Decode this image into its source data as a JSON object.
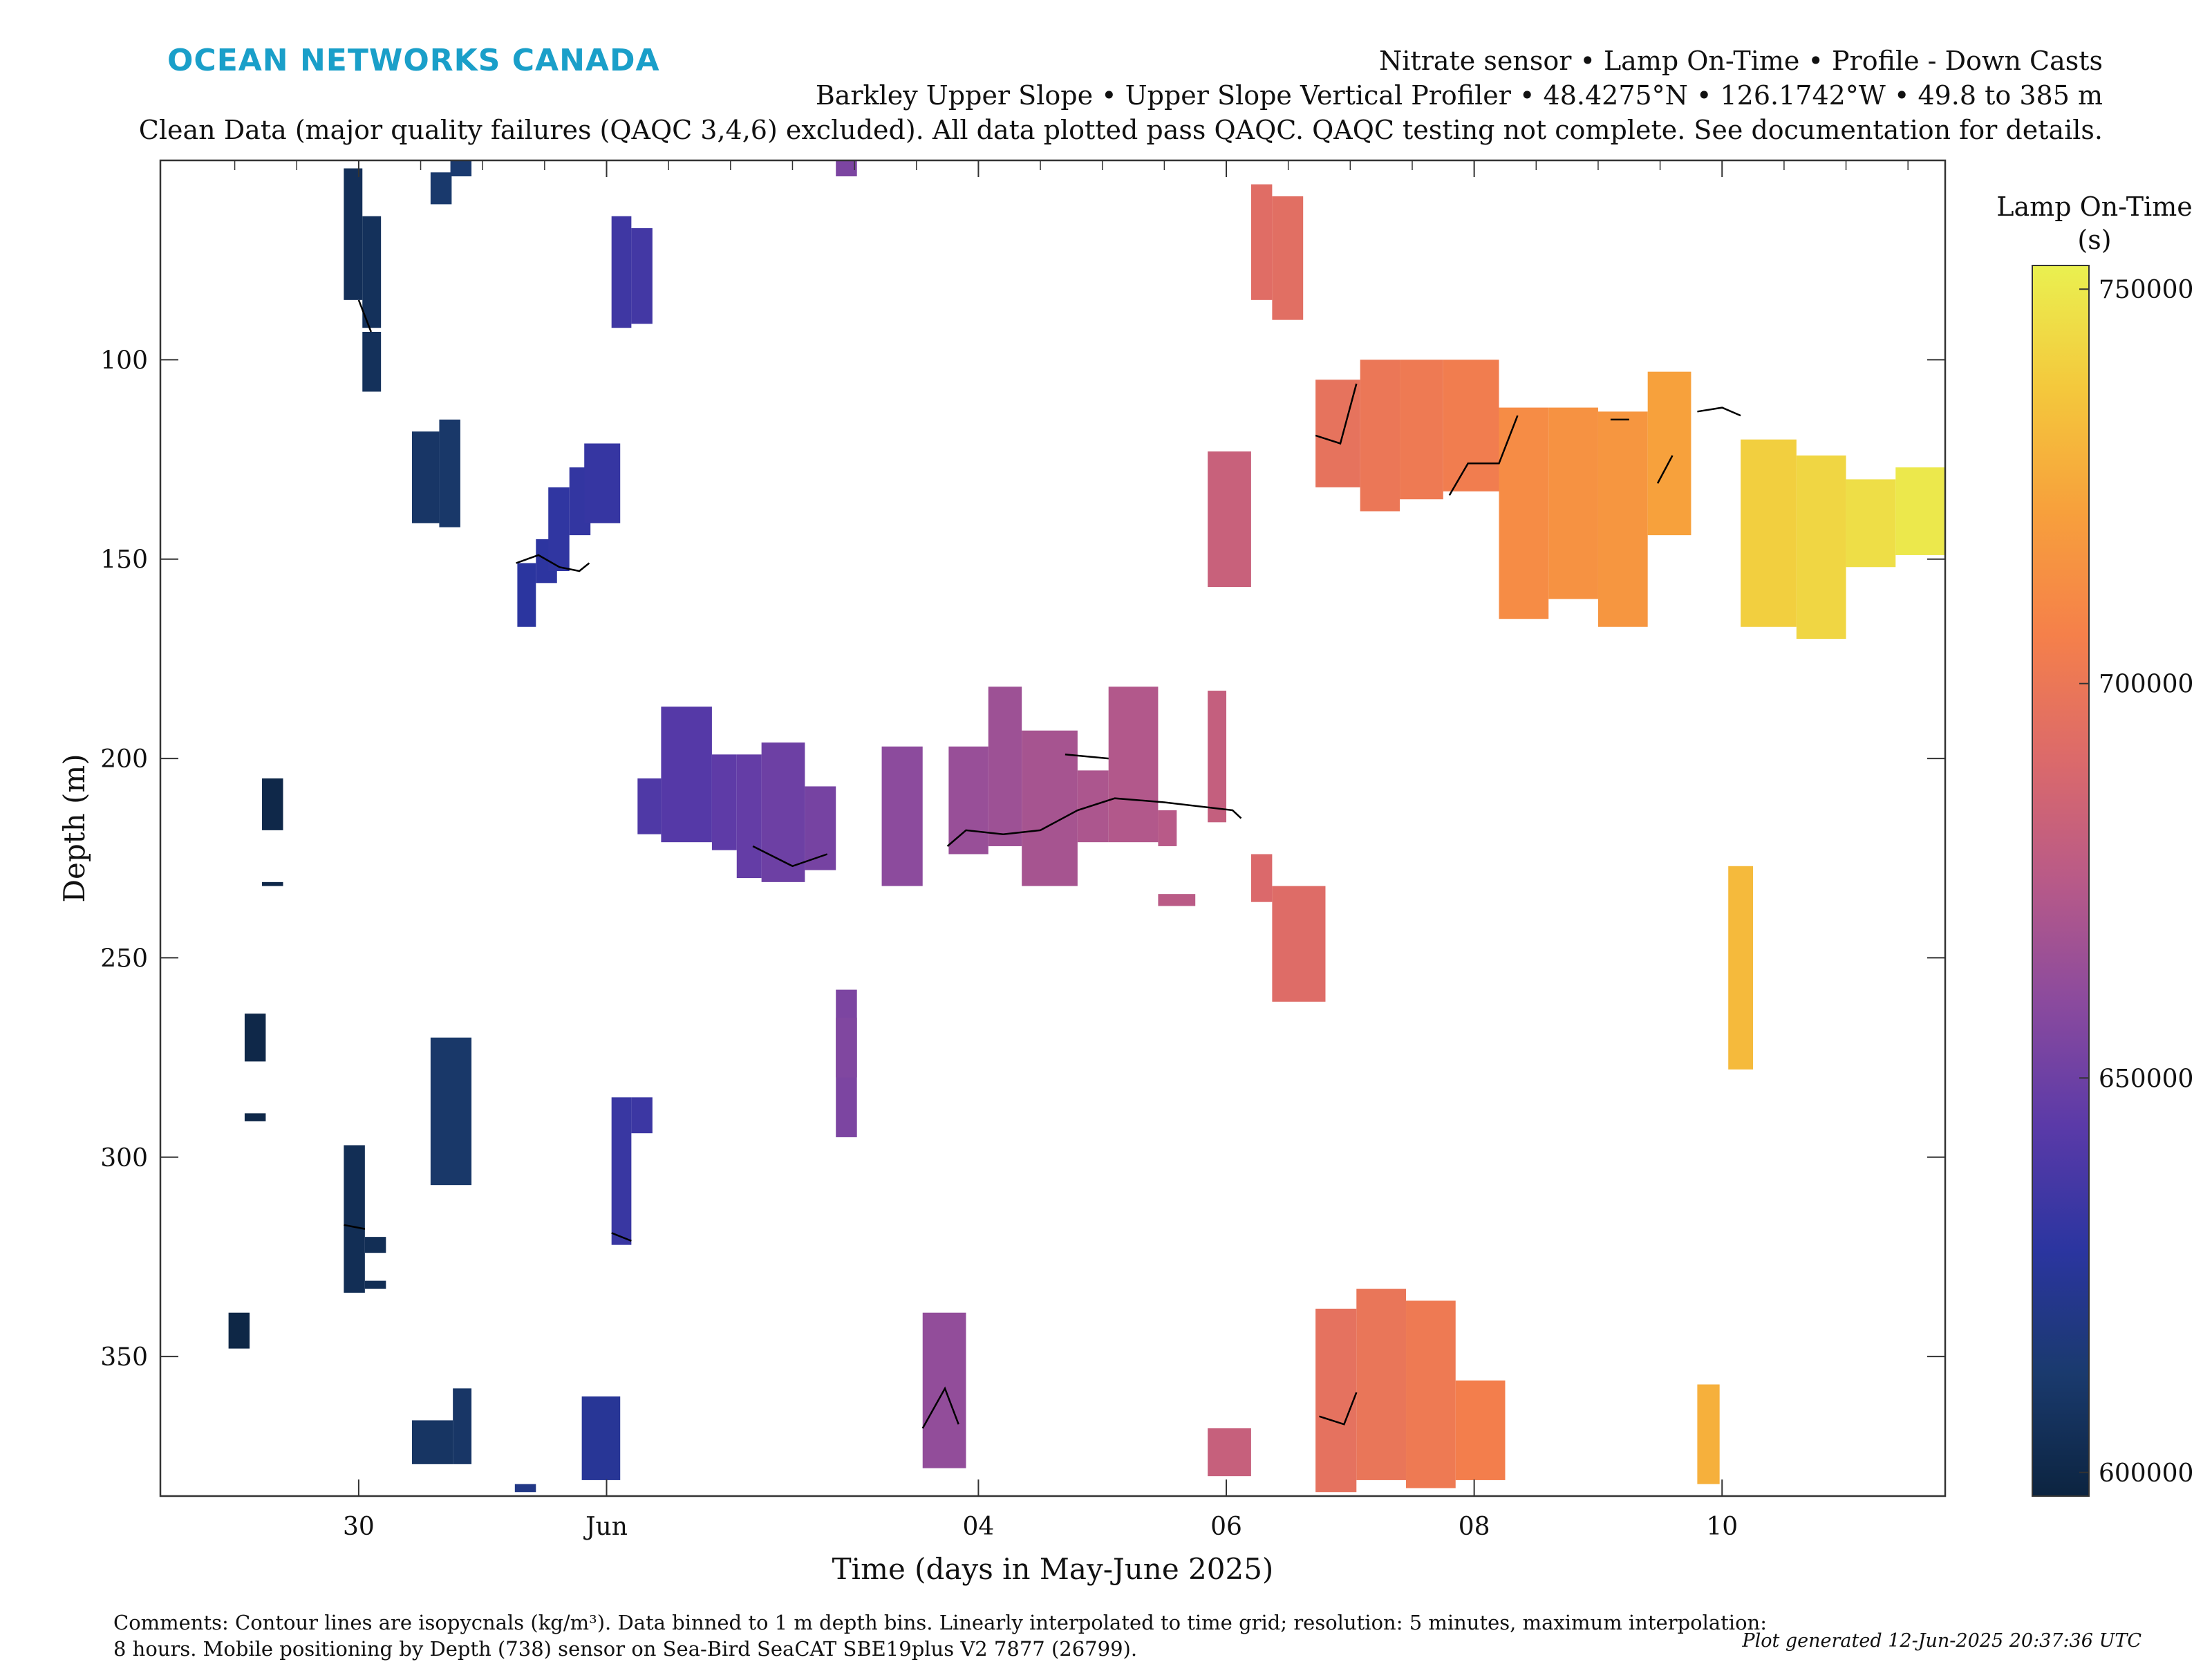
{
  "header": {
    "logo_text": "OCEAN NETWORKS CANADA",
    "title_line1": "Nitrate sensor • Lamp On-Time • Profile - Down Casts",
    "title_line2": "Barkley Upper Slope • Upper Slope Vertical Profiler • 48.4275°N • 126.1742°W • 49.8 to 385 m",
    "title_line3": "Clean Data (major quality failures (QAQC 3,4,6) excluded). All data plotted pass QAQC. QAQC testing not complete. See documentation for details."
  },
  "footer": {
    "comments_line1": "Comments: Contour lines are isopycnals (kg/m³). Data binned to 1 m depth bins. Linearly interpolated to time grid; resolution: 5 minutes, maximum interpolation:",
    "comments_line2": "8 hours. Mobile positioning by Depth (738) sensor on Sea-Bird SeaCAT SBE19plus V2 7877 (26799).",
    "generated": "Plot generated 12-Jun-2025 20:37:36 UTC"
  },
  "colors": {
    "axis": "#333333",
    "contour": "#000000",
    "colormap": [
      "#0c2440",
      "#1a3a6e",
      "#2b35a0",
      "#5a3aa8",
      "#8a4a9e",
      "#b85a88",
      "#dc6a6a",
      "#f5804a",
      "#f7a03c",
      "#f4c83c",
      "#eaf050"
    ]
  },
  "chart_data": {
    "type": "heatmap",
    "xlabel": "Time (days in May-June 2025)",
    "ylabel": "Depth (m)",
    "x_unit": "days relative to 1 Jun 2025 00:00",
    "xlim": [
      -3.6,
      10.8
    ],
    "ylim": [
      385,
      50
    ],
    "y_reversed": true,
    "x_ticks": [
      {
        "value": -2,
        "label": "30"
      },
      {
        "value": 0,
        "label": "Jun"
      },
      {
        "value": 3,
        "label": "04"
      },
      {
        "value": 5,
        "label": "06"
      },
      {
        "value": 7,
        "label": "08"
      },
      {
        "value": 9,
        "label": "10"
      }
    ],
    "y_ticks": [
      100,
      150,
      200,
      250,
      300,
      350
    ],
    "colorbar": {
      "label_line1": "Lamp On-Time",
      "label_line2": "(s)",
      "range": [
        597000,
        753000
      ],
      "ticks": [
        {
          "value": 600000,
          "label": "600000"
        },
        {
          "value": 650000,
          "label": "650000"
        },
        {
          "value": 700000,
          "label": "700000"
        },
        {
          "value": 750000,
          "label": "750000"
        }
      ]
    },
    "cells": [
      {
        "t0": -2.12,
        "t1": -1.97,
        "d0": 52,
        "d1": 85,
        "v": 605000
      },
      {
        "t0": -1.97,
        "t1": -1.82,
        "d0": 64,
        "d1": 92,
        "v": 606000
      },
      {
        "t0": -1.97,
        "t1": -1.82,
        "d0": 93,
        "d1": 108,
        "v": 606000
      },
      {
        "t0": -1.57,
        "t1": -1.35,
        "d0": 118,
        "d1": 141,
        "v": 610000
      },
      {
        "t0": -1.35,
        "t1": -1.18,
        "d0": 115,
        "d1": 142,
        "v": 611000
      },
      {
        "t0": -1.42,
        "t1": -1.25,
        "d0": 53,
        "d1": 61,
        "v": 612000
      },
      {
        "t0": -1.26,
        "t1": -1.09,
        "d0": 50,
        "d1": 54,
        "v": 613000
      },
      {
        "t0": -0.72,
        "t1": -0.57,
        "d0": 151,
        "d1": 167,
        "v": 628000
      },
      {
        "t0": -0.57,
        "t1": -0.4,
        "d0": 145,
        "d1": 156,
        "v": 629000
      },
      {
        "t0": -0.47,
        "t1": -0.3,
        "d0": 132,
        "d1": 153,
        "v": 630000
      },
      {
        "t0": -0.3,
        "t1": -0.13,
        "d0": 127,
        "d1": 144,
        "v": 631000
      },
      {
        "t0": -0.18,
        "t1": 0.11,
        "d0": 121,
        "d1": 141,
        "v": 632000
      },
      {
        "t0": 0.04,
        "t1": 0.2,
        "d0": 64,
        "d1": 92,
        "v": 635000
      },
      {
        "t0": 0.2,
        "t1": 0.37,
        "d0": 67,
        "d1": 91,
        "v": 636000
      },
      {
        "t0": -2.78,
        "t1": -2.61,
        "d0": 205,
        "d1": 218,
        "v": 600000
      },
      {
        "t0": -2.78,
        "t1": -2.61,
        "d0": 231,
        "d1": 232,
        "v": 600000
      },
      {
        "t0": -2.92,
        "t1": -2.75,
        "d0": 264,
        "d1": 276,
        "v": 600000
      },
      {
        "t0": -2.92,
        "t1": -2.75,
        "d0": 289,
        "d1": 291,
        "v": 600000
      },
      {
        "t0": -3.05,
        "t1": -2.88,
        "d0": 339,
        "d1": 348,
        "v": 599000
      },
      {
        "t0": -2.12,
        "t1": -1.95,
        "d0": 297,
        "d1": 334,
        "v": 604000
      },
      {
        "t0": -1.95,
        "t1": -1.78,
        "d0": 320,
        "d1": 324,
        "v": 604000
      },
      {
        "t0": -1.95,
        "t1": -1.78,
        "d0": 331,
        "d1": 333,
        "v": 604000
      },
      {
        "t0": -1.42,
        "t1": -1.09,
        "d0": 270,
        "d1": 307,
        "v": 611000
      },
      {
        "t0": -1.57,
        "t1": -1.24,
        "d0": 366,
        "d1": 377,
        "v": 609000
      },
      {
        "t0": -1.24,
        "t1": -1.09,
        "d0": 358,
        "d1": 377,
        "v": 610000
      },
      {
        "t0": -0.74,
        "t1": -0.57,
        "d0": 382,
        "d1": 384,
        "v": 620000
      },
      {
        "t0": -0.2,
        "t1": 0.11,
        "d0": 360,
        "d1": 381,
        "v": 625000
      },
      {
        "t0": 0.04,
        "t1": 0.2,
        "d0": 285,
        "d1": 322,
        "v": 633000
      },
      {
        "t0": 0.2,
        "t1": 0.37,
        "d0": 285,
        "d1": 294,
        "v": 634000
      },
      {
        "t0": 0.25,
        "t1": 0.44,
        "d0": 205,
        "d1": 219,
        "v": 640000
      },
      {
        "t0": 0.44,
        "t1": 0.85,
        "d0": 187,
        "d1": 221,
        "v": 642000
      },
      {
        "t0": 0.85,
        "t1": 1.05,
        "d0": 199,
        "d1": 223,
        "v": 645000
      },
      {
        "t0": 1.05,
        "t1": 1.25,
        "d0": 199,
        "d1": 230,
        "v": 647000
      },
      {
        "t0": 1.25,
        "t1": 1.6,
        "d0": 196,
        "d1": 231,
        "v": 650000
      },
      {
        "t0": 1.6,
        "t1": 1.85,
        "d0": 207,
        "d1": 228,
        "v": 653000
      },
      {
        "t0": 1.85,
        "t1": 2.02,
        "d0": 50,
        "d1": 54,
        "v": 655000
      },
      {
        "t0": 1.85,
        "t1": 2.02,
        "d0": 258,
        "d1": 295,
        "v": 655000
      },
      {
        "t0": 1.85,
        "t1": 2.02,
        "d0": 265,
        "d1": 280,
        "v": 656000
      },
      {
        "t0": 2.22,
        "t1": 2.55,
        "d0": 197,
        "d1": 232,
        "v": 660000
      },
      {
        "t0": 2.55,
        "t1": 2.9,
        "d0": 339,
        "d1": 378,
        "v": 662000
      },
      {
        "t0": 2.76,
        "t1": 3.08,
        "d0": 197,
        "d1": 224,
        "v": 664000
      },
      {
        "t0": 3.08,
        "t1": 3.35,
        "d0": 182,
        "d1": 222,
        "v": 666000
      },
      {
        "t0": 3.35,
        "t1": 3.8,
        "d0": 193,
        "d1": 232,
        "v": 669000
      },
      {
        "t0": 3.8,
        "t1": 4.05,
        "d0": 203,
        "d1": 221,
        "v": 671000
      },
      {
        "t0": 4.05,
        "t1": 4.45,
        "d0": 182,
        "d1": 221,
        "v": 673000
      },
      {
        "t0": 4.45,
        "t1": 4.6,
        "d0": 213,
        "d1": 222,
        "v": 675000
      },
      {
        "t0": 4.45,
        "t1": 4.75,
        "d0": 234,
        "d1": 237,
        "v": 676000
      },
      {
        "t0": 4.85,
        "t1": 5.0,
        "d0": 183,
        "d1": 216,
        "v": 680000
      },
      {
        "t0": 4.85,
        "t1": 5.2,
        "d0": 368,
        "d1": 380,
        "v": 681000
      },
      {
        "t0": 4.85,
        "t1": 5.2,
        "d0": 123,
        "d1": 157,
        "v": 682000
      },
      {
        "t0": 5.2,
        "t1": 5.37,
        "d0": 224,
        "d1": 236,
        "v": 690000
      },
      {
        "t0": 5.37,
        "t1": 5.8,
        "d0": 232,
        "d1": 261,
        "v": 692000
      },
      {
        "t0": 5.2,
        "t1": 5.37,
        "d0": 56,
        "d1": 85,
        "v": 693000
      },
      {
        "t0": 5.37,
        "t1": 5.62,
        "d0": 59,
        "d1": 90,
        "v": 694000
      },
      {
        "t0": 5.72,
        "t1": 6.08,
        "d0": 105,
        "d1": 132,
        "v": 697000
      },
      {
        "t0": 6.08,
        "t1": 6.4,
        "d0": 100,
        "d1": 138,
        "v": 700000
      },
      {
        "t0": 6.4,
        "t1": 6.75,
        "d0": 100,
        "d1": 135,
        "v": 702000
      },
      {
        "t0": 6.75,
        "t1": 7.2,
        "d0": 100,
        "d1": 133,
        "v": 704000
      },
      {
        "t0": 5.72,
        "t1": 6.05,
        "d0": 338,
        "d1": 384,
        "v": 696000
      },
      {
        "t0": 6.05,
        "t1": 6.45,
        "d0": 333,
        "d1": 381,
        "v": 699000
      },
      {
        "t0": 6.45,
        "t1": 6.85,
        "d0": 336,
        "d1": 383,
        "v": 702000
      },
      {
        "t0": 6.85,
        "t1": 7.25,
        "d0": 356,
        "d1": 381,
        "v": 705000
      },
      {
        "t0": 7.2,
        "t1": 7.6,
        "d0": 112,
        "d1": 165,
        "v": 712000
      },
      {
        "t0": 7.6,
        "t1": 8.0,
        "d0": 112,
        "d1": 160,
        "v": 715000
      },
      {
        "t0": 8.0,
        "t1": 8.4,
        "d0": 113,
        "d1": 167,
        "v": 717000
      },
      {
        "t0": 8.4,
        "t1": 8.75,
        "d0": 103,
        "d1": 144,
        "v": 722000
      },
      {
        "t0": 8.8,
        "t1": 8.98,
        "d0": 357,
        "d1": 382,
        "v": 728000
      },
      {
        "t0": 9.05,
        "t1": 9.25,
        "d0": 227,
        "d1": 278,
        "v": 732000
      },
      {
        "t0": 9.15,
        "t1": 9.6,
        "d0": 120,
        "d1": 167,
        "v": 740000
      },
      {
        "t0": 9.6,
        "t1": 10.0,
        "d0": 124,
        "d1": 170,
        "v": 743000
      },
      {
        "t0": 10.0,
        "t1": 10.4,
        "d0": 130,
        "d1": 152,
        "v": 746000
      },
      {
        "t0": 10.4,
        "t1": 10.8,
        "d0": 127,
        "d1": 149,
        "v": 750000
      }
    ],
    "contours": [
      {
        "t": [
          -0.73,
          -0.55,
          -0.38,
          -0.22,
          -0.14
        ],
        "d": [
          151,
          149,
          152,
          153,
          151
        ]
      },
      {
        "t": [
          -2.0,
          -1.9
        ],
        "d": [
          85,
          93
        ]
      },
      {
        "t": [
          1.18,
          1.5,
          1.78
        ],
        "d": [
          222,
          227,
          224
        ]
      },
      {
        "t": [
          2.75,
          2.9,
          3.2,
          3.5,
          3.8,
          4.1,
          4.5,
          5.05,
          5.12
        ],
        "d": [
          222,
          218,
          219,
          218,
          213,
          210,
          211,
          213,
          215
        ]
      },
      {
        "t": [
          3.7,
          4.05
        ],
        "d": [
          199,
          200
        ]
      },
      {
        "t": [
          2.55,
          2.73,
          2.84
        ],
        "d": [
          368,
          358,
          367
        ]
      },
      {
        "t": [
          5.75,
          5.95,
          6.05
        ],
        "d": [
          365,
          367,
          359
        ]
      },
      {
        "t": [
          5.72,
          5.92,
          6.05
        ],
        "d": [
          119,
          121,
          106
        ]
      },
      {
        "t": [
          6.8,
          6.95,
          7.2,
          7.35
        ],
        "d": [
          134,
          126,
          126,
          114
        ]
      },
      {
        "t": [
          8.1,
          8.25
        ],
        "d": [
          115,
          115
        ]
      },
      {
        "t": [
          8.48,
          8.6
        ],
        "d": [
          131,
          124
        ]
      },
      {
        "t": [
          8.8,
          9.0,
          9.15
        ],
        "d": [
          113,
          112,
          114
        ]
      },
      {
        "t": [
          -2.12,
          -1.95
        ],
        "d": [
          317,
          318
        ]
      },
      {
        "t": [
          0.04,
          0.2
        ],
        "d": [
          319,
          321
        ]
      }
    ]
  }
}
